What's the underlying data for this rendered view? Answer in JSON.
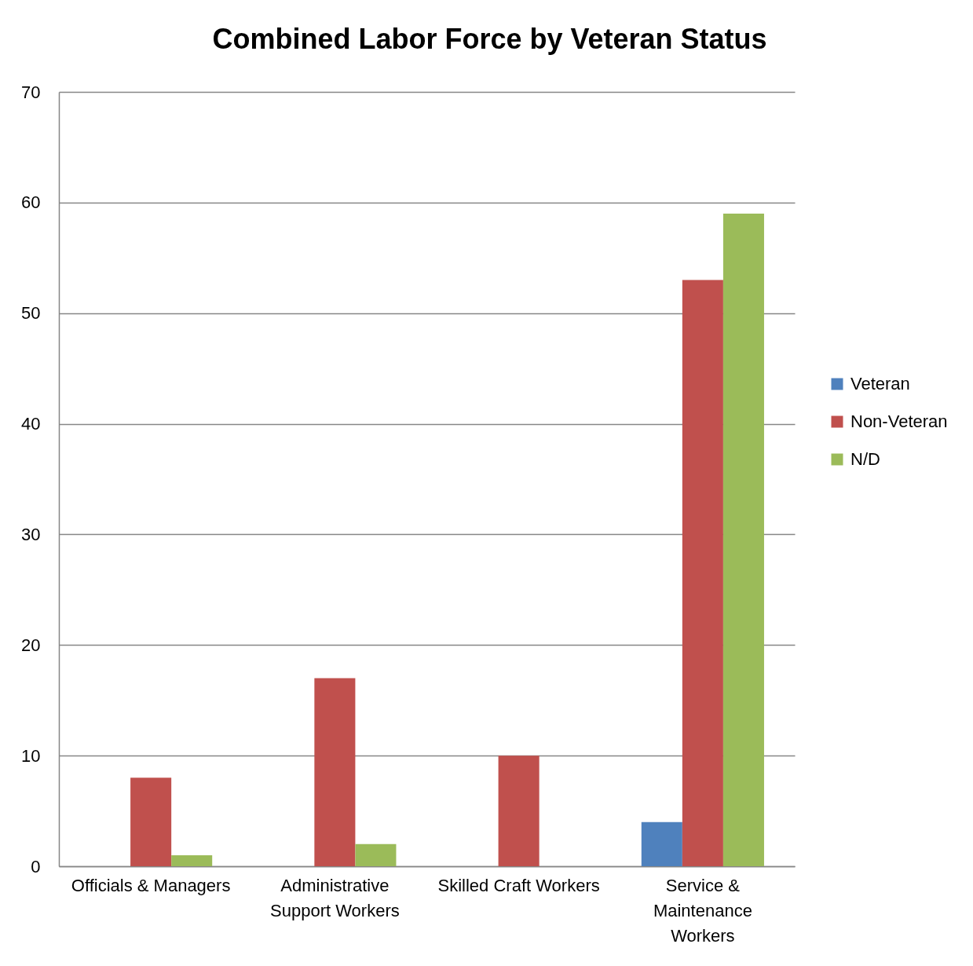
{
  "chart_data": {
    "type": "bar",
    "title": "Combined Labor Force by Veteran Status",
    "categories": [
      "Officials & Managers",
      "Administrative Support Workers",
      "Skilled Craft Workers",
      "Service & Maintenance Workers"
    ],
    "series": [
      {
        "name": "Veteran",
        "color": "#4f81bd",
        "values": [
          null,
          null,
          null,
          4
        ]
      },
      {
        "name": "Non-Veteran",
        "color": "#c0504d",
        "values": [
          8,
          17,
          10,
          53
        ]
      },
      {
        "name": "N/D",
        "color": "#9bbb59",
        "values": [
          1,
          2,
          null,
          59
        ]
      }
    ],
    "ylim": [
      0,
      70
    ],
    "yticks": [
      0,
      10,
      20,
      30,
      40,
      50,
      60,
      70
    ],
    "grid": "y",
    "legend": "right"
  }
}
